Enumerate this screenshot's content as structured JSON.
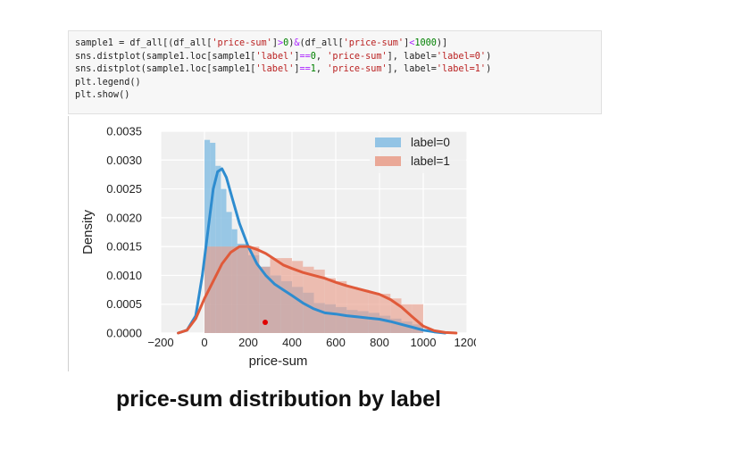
{
  "code_cell": {
    "lines": [
      [
        {
          "t": "sample1 = df_all[(df_all["
        },
        {
          "t": "'price-sum'",
          "c": "str"
        },
        {
          "t": "]"
        },
        {
          "t": ">",
          "c": "op"
        },
        {
          "t": "0",
          "c": "num"
        },
        {
          "t": ")"
        },
        {
          "t": "&",
          "c": "op"
        },
        {
          "t": "(df_all["
        },
        {
          "t": "'price-sum'",
          "c": "str"
        },
        {
          "t": "]"
        },
        {
          "t": "<",
          "c": "op"
        },
        {
          "t": "1000",
          "c": "num"
        },
        {
          "t": ")]"
        }
      ],
      [
        {
          "t": "sns.distplot(sample1.loc[sample1["
        },
        {
          "t": "'label'",
          "c": "str"
        },
        {
          "t": "]"
        },
        {
          "t": "==",
          "c": "op"
        },
        {
          "t": "0",
          "c": "num"
        },
        {
          "t": ", "
        },
        {
          "t": "'price-sum'",
          "c": "str"
        },
        {
          "t": "], label="
        },
        {
          "t": "'label=0'",
          "c": "str"
        },
        {
          "t": ")"
        }
      ],
      [
        {
          "t": "sns.distplot(sample1.loc[sample1["
        },
        {
          "t": "'label'",
          "c": "str"
        },
        {
          "t": "]"
        },
        {
          "t": "==",
          "c": "op"
        },
        {
          "t": "1",
          "c": "num"
        },
        {
          "t": ", "
        },
        {
          "t": "'price-sum'",
          "c": "str"
        },
        {
          "t": "], label="
        },
        {
          "t": "'label=1'",
          "c": "str"
        },
        {
          "t": ")"
        }
      ],
      [
        {
          "t": "plt.legend()"
        }
      ],
      [
        {
          "t": "plt.show()"
        }
      ]
    ]
  },
  "caption": "price-sum distribution by label",
  "colors": {
    "plot_bg": "#f0f0f0",
    "grid": "#ffffff",
    "series0": "#2e8ccf",
    "series0_hist": "#88bfe3",
    "series1": "#e05a3a",
    "series1_hist": "#e9a08d"
  },
  "chart_data": {
    "type": "area",
    "title": "",
    "xlabel": "price-sum",
    "ylabel": "Density",
    "xlim": [
      -200,
      1200
    ],
    "ylim": [
      0,
      0.0035
    ],
    "x_ticks": [
      -200,
      0,
      200,
      400,
      600,
      800,
      1000,
      1200
    ],
    "x_tick_labels": [
      "−200",
      "0",
      "200",
      "400",
      "600",
      "800",
      "1000",
      "1200"
    ],
    "y_ticks": [
      0,
      0.0005,
      0.001,
      0.0015,
      0.002,
      0.0025,
      0.003,
      0.0035
    ],
    "y_tick_labels": [
      "0.0000",
      "0.0005",
      "0.0010",
      "0.0015",
      "0.0020",
      "0.0025",
      "0.0030",
      "0.0035"
    ],
    "grid": true,
    "legend_position": "top-right",
    "series": [
      {
        "name": "label=0",
        "hist_bins": [
          0,
          25,
          50,
          75,
          100,
          125,
          150,
          200,
          250,
          300,
          350,
          400,
          450,
          500,
          550,
          600,
          650,
          700,
          750,
          800,
          850,
          900,
          950,
          1000
        ],
        "hist_values": [
          0.00335,
          0.0033,
          0.0029,
          0.0025,
          0.0021,
          0.0018,
          0.00155,
          0.00135,
          0.00115,
          0.001,
          0.0009,
          0.0008,
          0.0007,
          0.00052,
          0.0005,
          0.00045,
          0.0004,
          0.00038,
          0.00035,
          0.0003,
          0.00025,
          0.0002,
          0.00015
        ],
        "kde_x": [
          -120,
          -80,
          -40,
          -10,
          20,
          40,
          60,
          80,
          100,
          130,
          160,
          200,
          240,
          280,
          320,
          360,
          400,
          450,
          500,
          550,
          600,
          650,
          700,
          750,
          800,
          850,
          900,
          950,
          1000,
          1050,
          1100
        ],
        "kde_y": [
          0,
          5e-05,
          0.0003,
          0.001,
          0.0019,
          0.0025,
          0.0028,
          0.00285,
          0.0027,
          0.0023,
          0.0019,
          0.0015,
          0.0012,
          0.001,
          0.00085,
          0.00075,
          0.00065,
          0.00052,
          0.00042,
          0.00035,
          0.00033,
          0.0003,
          0.00028,
          0.00026,
          0.00024,
          0.0002,
          0.00015,
          0.0001,
          5e-05,
          2e-05,
          0
        ]
      },
      {
        "name": "label=1",
        "hist_bins": [
          0,
          50,
          100,
          150,
          200,
          250,
          300,
          350,
          400,
          450,
          500,
          550,
          600,
          650,
          700,
          750,
          800,
          850,
          900,
          950,
          1000
        ],
        "hist_values": [
          0.0015,
          0.0015,
          0.0015,
          0.0015,
          0.0015,
          0.00115,
          0.0013,
          0.0013,
          0.00125,
          0.00115,
          0.0011,
          0.00095,
          0.0009,
          0.0008,
          0.00075,
          0.0007,
          0.00068,
          0.0006,
          0.0005,
          0.0005
        ],
        "kde_x": [
          -120,
          -80,
          -40,
          0,
          40,
          80,
          120,
          160,
          200,
          240,
          280,
          320,
          360,
          400,
          450,
          500,
          550,
          600,
          650,
          700,
          750,
          800,
          850,
          900,
          950,
          1000,
          1050,
          1100,
          1150
        ],
        "kde_y": [
          0,
          5e-05,
          0.00025,
          0.0006,
          0.0009,
          0.0012,
          0.0014,
          0.0015,
          0.0015,
          0.00145,
          0.00138,
          0.00128,
          0.00118,
          0.00112,
          0.00105,
          0.001,
          0.00095,
          0.00088,
          0.00082,
          0.00077,
          0.00072,
          0.00067,
          0.00058,
          0.00045,
          0.00028,
          0.00012,
          4e-05,
          1e-05,
          0
        ]
      }
    ]
  }
}
